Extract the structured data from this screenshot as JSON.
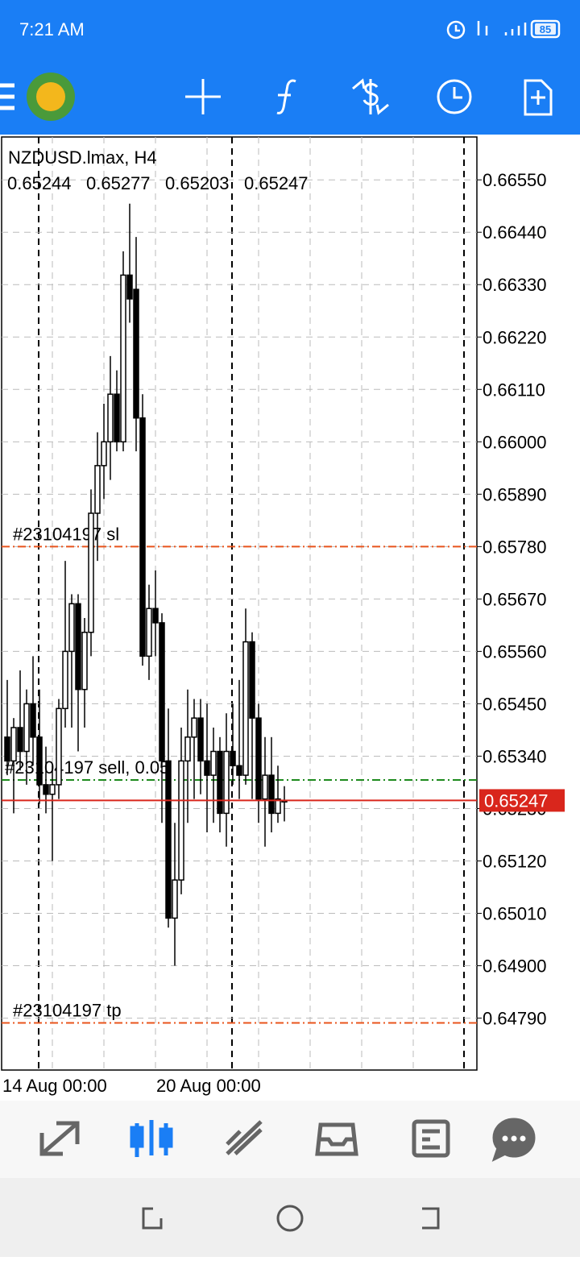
{
  "status_bar": {
    "time": "7:21 AM",
    "battery": "85"
  },
  "chart_data": {
    "type": "candlestick",
    "title": "NZDUSD.lmax, H4",
    "open": [
      0.6538,
      0.6533,
      0.654,
      0.6535,
      0.6545,
      0.6538,
      0.6528,
      0.6526,
      0.6528,
      0.6544,
      0.6556,
      0.6566,
      0.6548,
      0.656,
      0.6585,
      0.6595,
      0.66,
      0.661,
      0.66,
      0.6635,
      0.6632,
      0.6605,
      0.6555,
      0.6565,
      0.6562,
      0.6533,
      0.65,
      0.6508,
      0.6533,
      0.6538,
      0.6542,
      0.6533,
      0.653,
      0.6535,
      0.6522,
      0.6535,
      0.6532,
      0.653,
      0.6558,
      0.6542,
      0.6525,
      0.653,
      0.6522,
      0.65244
    ],
    "high": [
      0.655,
      0.6542,
      0.6552,
      0.6548,
      0.6555,
      0.6548,
      0.6536,
      0.6532,
      0.6546,
      0.6575,
      0.6568,
      0.6568,
      0.6563,
      0.659,
      0.6602,
      0.6608,
      0.6618,
      0.6615,
      0.664,
      0.665,
      0.6643,
      0.661,
      0.657,
      0.6573,
      0.6564,
      0.6544,
      0.652,
      0.654,
      0.6548,
      0.6546,
      0.6546,
      0.6545,
      0.654,
      0.6538,
      0.6543,
      0.6545,
      0.655,
      0.6565,
      0.656,
      0.6545,
      0.6538,
      0.6538,
      0.6532,
      0.65277
    ],
    "low": [
      0.653,
      0.6522,
      0.6531,
      0.6528,
      0.6532,
      0.6524,
      0.6522,
      0.6512,
      0.6525,
      0.654,
      0.654,
      0.6535,
      0.654,
      0.6555,
      0.6575,
      0.6588,
      0.6592,
      0.6598,
      0.6598,
      0.6625,
      0.6598,
      0.6553,
      0.655,
      0.6555,
      0.652,
      0.6498,
      0.649,
      0.6505,
      0.652,
      0.6525,
      0.6526,
      0.6518,
      0.652,
      0.6518,
      0.6515,
      0.6528,
      0.6525,
      0.6528,
      0.6525,
      0.652,
      0.6515,
      0.6518,
      0.652,
      0.65203
    ],
    "close": [
      0.6533,
      0.654,
      0.6535,
      0.6545,
      0.6538,
      0.6528,
      0.6526,
      0.6528,
      0.6544,
      0.6556,
      0.6566,
      0.6548,
      0.656,
      0.6585,
      0.6595,
      0.66,
      0.661,
      0.66,
      0.6635,
      0.663,
      0.6605,
      0.6555,
      0.6565,
      0.6562,
      0.6533,
      0.65,
      0.6508,
      0.6533,
      0.6538,
      0.6542,
      0.6533,
      0.653,
      0.6535,
      0.6522,
      0.6535,
      0.6532,
      0.653,
      0.6558,
      0.6542,
      0.6525,
      0.653,
      0.6522,
      0.6525,
      0.65247
    ],
    "ylim": [
      0.64681,
      0.6664
    ],
    "yticks": [
      {
        "value": 0.6655,
        "label": "0.66550"
      },
      {
        "value": 0.6644,
        "label": "0.66440"
      },
      {
        "value": 0.6633,
        "label": "0.66330"
      },
      {
        "value": 0.6622,
        "label": "0.66220"
      },
      {
        "value": 0.6611,
        "label": "0.66110"
      },
      {
        "value": 0.66,
        "label": "0.66000"
      },
      {
        "value": 0.6589,
        "label": "0.65890"
      },
      {
        "value": 0.6578,
        "label": "0.65780"
      },
      {
        "value": 0.6567,
        "label": "0.65670"
      },
      {
        "value": 0.6556,
        "label": "0.65560"
      },
      {
        "value": 0.6545,
        "label": "0.65450"
      },
      {
        "value": 0.6534,
        "label": "0.65340"
      },
      {
        "value": 0.6523,
        "label": "0.65230"
      },
      {
        "value": 0.6512,
        "label": "0.65120"
      },
      {
        "value": 0.6501,
        "label": "0.65010"
      },
      {
        "value": 0.649,
        "label": "0.64900"
      },
      {
        "value": 0.6479,
        "label": "0.64790"
      }
    ],
    "x_tick_labels": [
      "14 Aug 00:00",
      "20 Aug 00:00"
    ],
    "levels": [
      {
        "label": "#23104197 sl",
        "value": 0.6578,
        "color": "#e8541c"
      },
      {
        "label": "#23104197 sell, 0.05",
        "value": 0.6529,
        "color": "#1e8a1e"
      },
      {
        "label": "#23104197 tp",
        "value": 0.6478,
        "color": "#e8541c"
      }
    ],
    "bid_color": "#d9261c",
    "grid": true
  }
}
